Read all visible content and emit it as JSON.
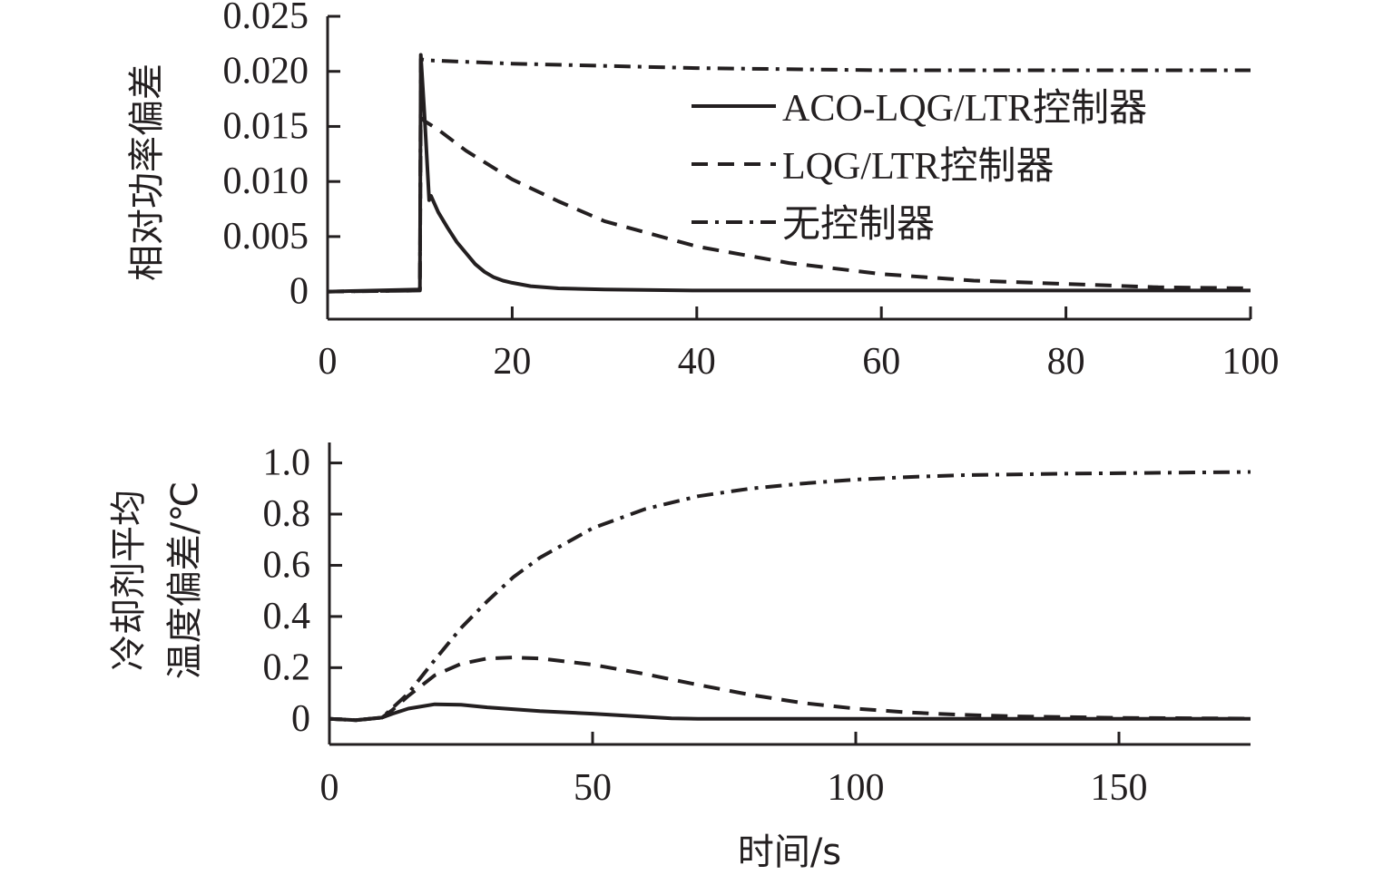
{
  "chart_data": [
    {
      "type": "line",
      "ylabel": "相对功率偏差",
      "xlabel": "",
      "xlim": [
        0,
        100
      ],
      "ylim": [
        -0.0025,
        0.025
      ],
      "x_ticks": [
        "0",
        "20",
        "40",
        "60",
        "80",
        "100"
      ],
      "x_tick_values": [
        0,
        20,
        40,
        60,
        80,
        100
      ],
      "y_ticks": [
        "0",
        "0.005",
        "0.010",
        "0.015",
        "0.020",
        "0.025"
      ],
      "y_tick_values": [
        0,
        0.005,
        0.01,
        0.015,
        0.02,
        0.025
      ],
      "legend_position": "upper-right",
      "series": [
        {
          "name": "ACO-LQG/LTR控制器",
          "style": "solid",
          "x": [
            0,
            10,
            10.1,
            10.5,
            11,
            11.2,
            12,
            13,
            14,
            15,
            16,
            17,
            18,
            19,
            20,
            22,
            25,
            30,
            40,
            50,
            60,
            70,
            80,
            90,
            100
          ],
          "y": [
            0,
            0.0002,
            0.0215,
            0.016,
            0.0083,
            0.0087,
            0.0072,
            0.0058,
            0.0045,
            0.0035,
            0.0025,
            0.0018,
            0.0013,
            0.001,
            0.0008,
            0.0005,
            0.0003,
            0.0002,
            0.0001,
            0.0001,
            0.0001,
            0.0001,
            0.0001,
            0.0001,
            0.0001
          ]
        },
        {
          "name": "LQG/LTR控制器",
          "style": "dashed",
          "x": [
            0,
            10,
            10.1,
            10.5,
            12,
            15,
            20,
            25,
            30,
            40,
            50,
            60,
            70,
            80,
            90,
            100
          ],
          "y": [
            0,
            0.0001,
            0.0158,
            0.0155,
            0.0147,
            0.0128,
            0.0102,
            0.0082,
            0.0064,
            0.0041,
            0.0026,
            0.0016,
            0.001,
            0.0007,
            0.0004,
            0.0003
          ]
        },
        {
          "name": "无控制器",
          "style": "dash-dot",
          "x": [
            0,
            10,
            10.1,
            11,
            20,
            40,
            60,
            80,
            100
          ],
          "y": [
            0,
            0.0001,
            0.0211,
            0.021,
            0.0207,
            0.0203,
            0.0201,
            0.0201,
            0.0201
          ]
        }
      ]
    },
    {
      "type": "line",
      "ylabel": [
        "冷却剂平均",
        "温度偏差/℃"
      ],
      "xlabel": "时间/s",
      "xlim": [
        0,
        175
      ],
      "ylim": [
        -0.1,
        1.08
      ],
      "x_ticks": [
        "0",
        "50",
        "100",
        "150"
      ],
      "x_tick_values": [
        0,
        50,
        100,
        150
      ],
      "y_ticks": [
        "0",
        "0.2",
        "0.4",
        "0.6",
        "0.8",
        "1.0"
      ],
      "y_tick_values": [
        0,
        0.2,
        0.4,
        0.6,
        0.8,
        1.0
      ],
      "series": [
        {
          "name": "ACO-LQG/LTR控制器",
          "style": "solid",
          "x": [
            0,
            5,
            10,
            12,
            15,
            20,
            25,
            30,
            40,
            50,
            60,
            65,
            70,
            100,
            150,
            175
          ],
          "y": [
            0,
            -0.005,
            0.005,
            0.02,
            0.04,
            0.057,
            0.055,
            0.045,
            0.03,
            0.02,
            0.008,
            0.002,
            0.0,
            0.0,
            0.0,
            0.0
          ]
        },
        {
          "name": "LQG/LTR控制器",
          "style": "dashed",
          "x": [
            0,
            5,
            10,
            12,
            15,
            20,
            25,
            30,
            35,
            40,
            50,
            60,
            70,
            80,
            90,
            100,
            110,
            120,
            130,
            150,
            175
          ],
          "y": [
            0,
            -0.005,
            0.005,
            0.035,
            0.09,
            0.17,
            0.215,
            0.236,
            0.24,
            0.236,
            0.212,
            0.175,
            0.133,
            0.094,
            0.062,
            0.04,
            0.025,
            0.016,
            0.01,
            0.004,
            0.001
          ]
        },
        {
          "name": "无控制器",
          "style": "dash-dot",
          "x": [
            0,
            5,
            10,
            15,
            20,
            25,
            30,
            35,
            40,
            50,
            60,
            70,
            80,
            90,
            100,
            110,
            120,
            140,
            160,
            175
          ],
          "y": [
            0,
            -0.005,
            0.005,
            0.1,
            0.23,
            0.355,
            0.46,
            0.555,
            0.63,
            0.745,
            0.82,
            0.87,
            0.9,
            0.92,
            0.935,
            0.945,
            0.952,
            0.958,
            0.962,
            0.965
          ]
        }
      ]
    }
  ]
}
